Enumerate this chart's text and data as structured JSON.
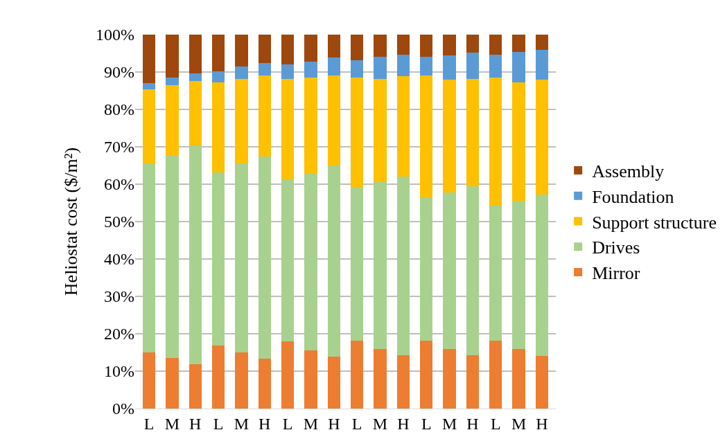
{
  "chart_data": {
    "type": "bar",
    "stacked": true,
    "ylabel": "Heliostat cost ($/m²)",
    "categories": [
      "L",
      "M",
      "H",
      "L",
      "M",
      "H",
      "L",
      "M",
      "H",
      "L",
      "M",
      "H",
      "L",
      "M",
      "H",
      "L",
      "M",
      "H"
    ],
    "series": [
      {
        "name": "Mirror",
        "color": "#ed7d31",
        "values": [
          15,
          13.6,
          11.8,
          16.8,
          15,
          13.3,
          18,
          15.6,
          13.8,
          18.2,
          16,
          14.2,
          18.2,
          16,
          14.2,
          18.2,
          16,
          14
        ]
      },
      {
        "name": "Drives",
        "color": "#a9d18e",
        "values": [
          50.5,
          54.2,
          58.5,
          46.4,
          50.5,
          54.2,
          43.3,
          47.2,
          51.2,
          41,
          44.5,
          47.8,
          38.3,
          41.8,
          45.3,
          36,
          39.5,
          43.2
        ]
      },
      {
        "name": "Support structure",
        "color": "#ffc000",
        "values": [
          19.8,
          18.7,
          17.3,
          24.1,
          22.7,
          21.5,
          26.9,
          25.7,
          24,
          29.3,
          27.7,
          26.8,
          32.5,
          30.2,
          28.7,
          34.3,
          31.8,
          30.8
        ]
      },
      {
        "name": "Foundation",
        "color": "#5b9bd5",
        "values": [
          1.7,
          2,
          2,
          2.9,
          3.2,
          3.5,
          3.8,
          4.3,
          4.8,
          4.7,
          5.8,
          5.9,
          5,
          6.5,
          7,
          6.1,
          8,
          8
        ]
      },
      {
        "name": "Assembly",
        "color": "#9e480e",
        "values": [
          13,
          11.5,
          10.4,
          9.8,
          8.6,
          7.5,
          8,
          7.2,
          6.2,
          6.8,
          6,
          5.3,
          6,
          5.5,
          4.8,
          5.4,
          4.7,
          4
        ]
      }
    ],
    "ylim": [
      0,
      100
    ],
    "yticks": [
      {
        "value": 0,
        "label": "0%"
      },
      {
        "value": 10,
        "label": "10%"
      },
      {
        "value": 20,
        "label": "20%"
      },
      {
        "value": 30,
        "label": "30%"
      },
      {
        "value": 40,
        "label": "40%"
      },
      {
        "value": 50,
        "label": "50%"
      },
      {
        "value": 60,
        "label": "60%"
      },
      {
        "value": 70,
        "label": "70%"
      },
      {
        "value": 80,
        "label": "80%"
      },
      {
        "value": 90,
        "label": "90%"
      },
      {
        "value": 100,
        "label": "100%"
      }
    ],
    "grid": "y",
    "legend": "right"
  }
}
